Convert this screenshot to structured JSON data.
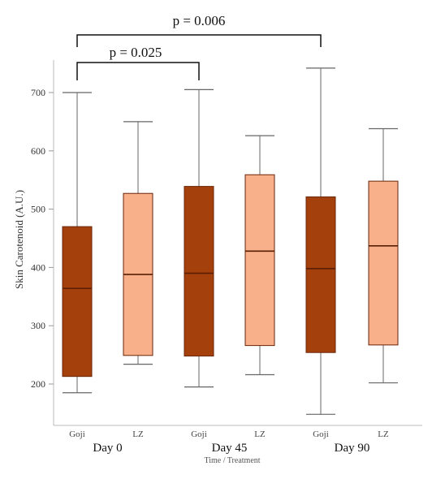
{
  "chart_data": {
    "type": "box",
    "ylabel": "Skin Carotenoid (A.U.)",
    "xlabel": "Time / Treatment",
    "ylim": [
      140,
      760
    ],
    "yticks": [
      200,
      300,
      400,
      500,
      600,
      700
    ],
    "groups": [
      "Day 0",
      "Day 45",
      "Day 90"
    ],
    "boxes": [
      {
        "group": "Day 0",
        "category": "Goji",
        "min": 185,
        "q1": 213,
        "median": 364,
        "q3": 470,
        "max": 700
      },
      {
        "group": "Day 0",
        "category": "LZ",
        "min": 234,
        "q1": 249,
        "median": 388,
        "q3": 527,
        "max": 650
      },
      {
        "group": "Day 45",
        "category": "Goji",
        "min": 195,
        "q1": 248,
        "median": 390,
        "q3": 539,
        "max": 705
      },
      {
        "group": "Day 45",
        "category": "LZ",
        "min": 216,
        "q1": 266,
        "median": 428,
        "q3": 559,
        "max": 626
      },
      {
        "group": "Day 90",
        "category": "Goji",
        "min": 148,
        "q1": 254,
        "median": 398,
        "q3": 521,
        "max": 742
      },
      {
        "group": "Day 90",
        "category": "LZ",
        "min": 202,
        "q1": 267,
        "median": 437,
        "q3": 548,
        "max": 638
      }
    ],
    "colors": {
      "Goji": "#a3400b",
      "LZ": "#f7b08a"
    },
    "annotations": [
      {
        "text": "p = 0.006",
        "from": 0,
        "to": 4
      },
      {
        "text": "p = 0.025",
        "from": 0,
        "to": 2
      }
    ],
    "grid": false,
    "legend": "none"
  }
}
